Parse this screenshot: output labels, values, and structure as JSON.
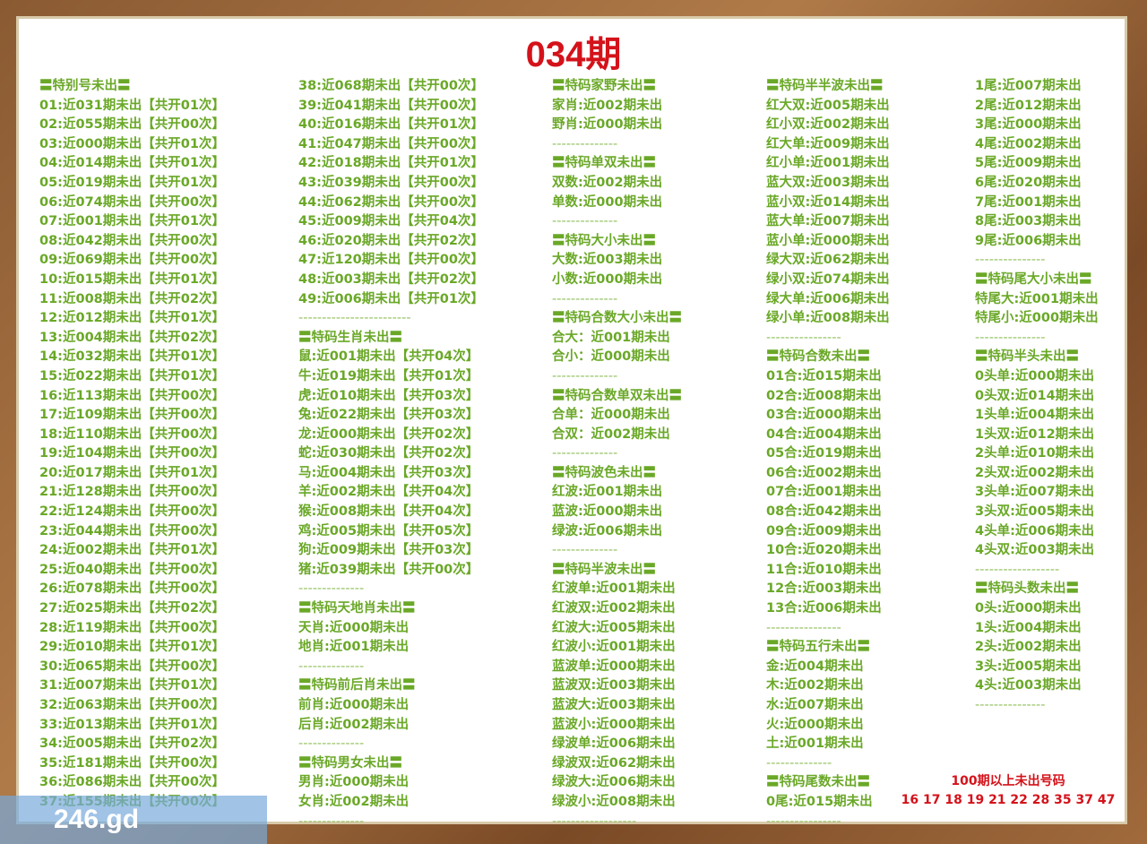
{
  "title": "034期",
  "columns": [
    [
      "〓特别号未出〓",
      "01:近031期未出【共开01次】",
      "02:近055期未出【共开00次】",
      "03:近000期未出【共开01次】",
      "04:近014期未出【共开01次】",
      "05:近019期未出【共开01次】",
      "06:近074期未出【共开00次】",
      "07:近001期未出【共开01次】",
      "08:近042期未出【共开00次】",
      "09:近069期未出【共开00次】",
      "10:近015期未出【共开01次】",
      "11:近008期未出【共开02次】",
      "12:近012期未出【共开01次】",
      "13:近004期未出【共开02次】",
      "14:近032期未出【共开01次】",
      "15:近022期未出【共开01次】",
      "16:近113期未出【共开00次】",
      "17:近109期未出【共开00次】",
      "18:近110期未出【共开00次】",
      "19:近104期未出【共开00次】",
      "20:近017期未出【共开01次】",
      "21:近128期未出【共开00次】",
      "22:近124期未出【共开00次】",
      "23:近044期未出【共开00次】",
      "24:近002期未出【共开01次】",
      "25:近040期未出【共开00次】",
      "26:近078期未出【共开00次】",
      "27:近025期未出【共开02次】",
      "28:近119期未出【共开00次】",
      "29:近010期未出【共开01次】",
      "30:近065期未出【共开00次】",
      "31:近007期未出【共开01次】",
      "32:近063期未出【共开00次】",
      "33:近013期未出【共开01次】",
      "34:近005期未出【共开02次】",
      "35:近181期未出【共开00次】",
      "36:近086期未出【共开00次】",
      "37:近155期未出【共开00次】"
    ],
    [
      "38:近068期未出【共开00次】",
      "39:近041期未出【共开00次】",
      "40:近016期未出【共开01次】",
      "41:近047期未出【共开00次】",
      "42:近018期未出【共开01次】",
      "43:近039期未出【共开00次】",
      "44:近062期未出【共开00次】",
      "45:近009期未出【共开04次】",
      "46:近020期未出【共开02次】",
      "47:近120期未出【共开00次】",
      "48:近003期未出【共开02次】",
      "49:近006期未出【共开01次】",
      "------------------------",
      "〓特码生肖未出〓",
      "鼠:近001期未出【共开04次】",
      "牛:近019期未出【共开01次】",
      "虎:近010期未出【共开03次】",
      "兔:近022期未出【共开03次】",
      "龙:近000期未出【共开02次】",
      "蛇:近030期未出【共开02次】",
      "马:近004期未出【共开03次】",
      "羊:近002期未出【共开04次】",
      "猴:近008期未出【共开04次】",
      "鸡:近005期未出【共开05次】",
      "狗:近009期未出【共开03次】",
      "猪:近039期未出【共开00次】",
      "--------------",
      "〓特码天地肖未出〓",
      "天肖:近000期未出",
      "地肖:近001期未出",
      "--------------",
      "〓特码前后肖未出〓",
      "前肖:近000期未出",
      "后肖:近002期未出",
      "--------------",
      "〓特码男女未出〓",
      "男肖:近000期未出",
      "女肖:近002期未出",
      "--------------"
    ],
    [
      "〓特码家野未出〓",
      "家肖:近002期未出",
      "野肖:近000期未出",
      "--------------",
      "〓特码单双未出〓",
      "双数:近002期未出",
      "单数:近000期未出",
      "--------------",
      "〓特码大小未出〓",
      "大数:近003期未出",
      "小数:近000期未出",
      "--------------",
      "〓特码合数大小未出〓",
      "合大：近001期未出",
      "合小：近000期未出",
      "--------------",
      "〓特码合数单双未出〓",
      "合单：近000期未出",
      "合双：近002期未出",
      "--------------",
      "〓特码波色未出〓",
      "红波:近001期未出",
      "蓝波:近000期未出",
      "绿波:近006期未出",
      "--------------",
      "〓特码半波未出〓",
      "红波单:近001期未出",
      "红波双:近002期未出",
      "红波大:近005期未出",
      "红波小:近001期未出",
      "蓝波单:近000期未出",
      "蓝波双:近003期未出",
      "蓝波大:近003期未出",
      "蓝波小:近000期未出",
      "绿波单:近006期未出",
      "绿波双:近062期未出",
      "绿波大:近006期未出",
      "绿波小:近008期未出",
      "------------------"
    ],
    [
      "〓特码半半波未出〓",
      "红大双:近005期未出",
      "红小双:近002期未出",
      "红大单:近009期未出",
      "红小单:近001期未出",
      "蓝大双:近003期未出",
      "蓝小双:近014期未出",
      "蓝大单:近007期未出",
      "蓝小单:近000期未出",
      "绿大双:近062期未出",
      "绿小双:近074期未出",
      "绿大单:近006期未出",
      "绿小单:近008期未出",
      "----------------",
      "〓特码合数未出〓",
      "01合:近015期未出",
      "02合:近008期未出",
      "03合:近000期未出",
      "04合:近004期未出",
      "05合:近019期未出",
      "06合:近002期未出",
      "07合:近001期未出",
      "08合:近042期未出",
      "09合:近009期未出",
      "10合:近020期未出",
      "11合:近010期未出",
      "12合:近003期未出",
      "13合:近006期未出",
      "----------------",
      "〓特码五行未出〓",
      "金:近004期未出",
      "木:近002期未出",
      "水:近007期未出",
      "火:近000期未出",
      "土:近001期未出",
      "--------------",
      "〓特码尾数未出〓",
      "0尾:近015期未出",
      "----------------"
    ],
    [
      "1尾:近007期未出",
      "2尾:近012期未出",
      "3尾:近000期未出",
      "4尾:近002期未出",
      "5尾:近009期未出",
      "6尾:近020期未出",
      "7尾:近001期未出",
      "8尾:近003期未出",
      "9尾:近006期未出",
      "---------------",
      "〓特码尾大小未出〓",
      "特尾大:近001期未出",
      "特尾小:近000期未出",
      "---------------",
      "〓特码半头未出〓",
      "0头单:近000期未出",
      "0头双:近014期未出",
      "1头单:近004期未出",
      "1头双:近012期未出",
      "2头单:近010期未出",
      "2头双:近002期未出",
      "3头单:近007期未出",
      "3头双:近005期未出",
      "4头单:近006期未出",
      "4头双:近003期未出",
      "------------------",
      "〓特码头数未出〓",
      "0头:近000期未出",
      "1头:近004期未出",
      "2头:近002期未出",
      "3头:近005期未出",
      "4头:近003期未出",
      "---------------"
    ]
  ],
  "footer": {
    "label": "100期以上未出号码",
    "numbers": "16 17 18 19 21 22 28 35 37 47"
  },
  "watermark": "246.gd"
}
